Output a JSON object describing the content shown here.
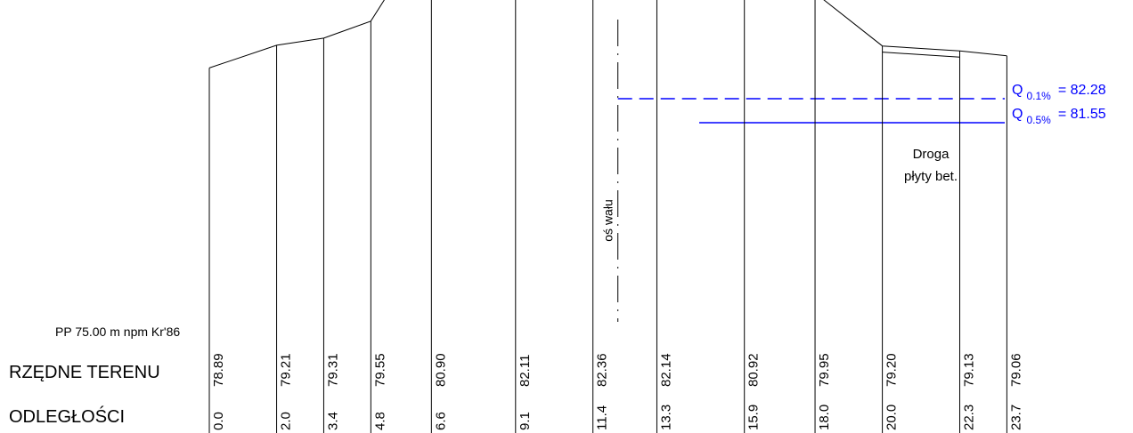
{
  "datum_label": "PP 75.00 m npm Kr'86",
  "row_labels": {
    "elevations": "RZĘDNE TERENU",
    "distances": "ODLEGŁOŚCI"
  },
  "axis_label": "oś wału",
  "road_label": {
    "line1": "Droga",
    "line2": "płyty bet."
  },
  "water_levels": [
    {
      "sym": "Q",
      "sub": "0.1%",
      "value": "= 82.28",
      "style": "dashed",
      "color": "#0000ff"
    },
    {
      "sym": "Q",
      "sub": "0.5%",
      "value": "= 81.55",
      "style": "solid",
      "color": "#0000ff"
    }
  ],
  "chart_data": {
    "type": "line",
    "x": [
      0.0,
      2.0,
      3.4,
      4.8,
      6.6,
      9.1,
      11.4,
      13.3,
      15.9,
      18.0,
      20.0,
      22.3,
      23.7
    ],
    "y": [
      78.89,
      79.21,
      79.31,
      79.55,
      80.9,
      82.11,
      82.36,
      82.14,
      80.92,
      79.95,
      79.2,
      79.13,
      79.06
    ],
    "x_labels": [
      "0.0",
      "2.0",
      "3.4",
      "4.8",
      "6.6",
      "9.1",
      "11.4",
      "13.3",
      "15.9",
      "18.0",
      "20.0",
      "22.3",
      "23.7"
    ],
    "y_labels": [
      "78.89",
      "79.21",
      "79.31",
      "79.55",
      "80.90",
      "82.11",
      "82.36",
      "82.14",
      "80.92",
      "79.95",
      "79.20",
      "79.13",
      "79.06"
    ],
    "datum": 75.0,
    "axis_x": 11.4,
    "road_span": [
      20.0,
      22.3
    ]
  }
}
